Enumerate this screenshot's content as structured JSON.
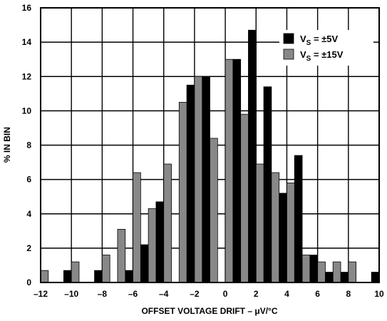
{
  "chart_data": {
    "type": "bar",
    "title": "",
    "xlabel": "OFFSET VOLTAGE DRIFT – μV/°C",
    "ylabel": "% IN BIN",
    "xlim": [
      -12,
      10
    ],
    "ylim": [
      0,
      16
    ],
    "xticks": [
      -12,
      -10,
      -8,
      -6,
      -4,
      -2,
      0,
      2,
      4,
      6,
      8,
      10
    ],
    "yticks": [
      0,
      2,
      4,
      6,
      8,
      10,
      12,
      14,
      16
    ],
    "xtick_labels": [
      "–12",
      "–10",
      "–8",
      "–6",
      "–4",
      "–2",
      "0",
      "2",
      "4",
      "6",
      "8",
      "10"
    ],
    "ytick_labels": [
      "0",
      "2",
      "4",
      "6",
      "8",
      "10",
      "12",
      "14",
      "16"
    ],
    "bin_width": 1,
    "grid": true,
    "legend_position": "top-right",
    "series": [
      {
        "name": "±5V",
        "legend_main": "V",
        "legend_sub": "S",
        "legend_rest": " = ±5V",
        "color": "#000000",
        "bins": [
          -11.25,
          -10.25,
          -9.25,
          -8.25,
          -7.25,
          -6.25,
          -5.25,
          -4.25,
          -3.25,
          -2.25,
          -1.25,
          -0.25,
          0.75,
          1.75,
          2.75,
          3.75,
          4.75,
          5.75,
          6.75,
          7.75,
          8.75,
          9.75
        ],
        "values": [
          0,
          0.7,
          0,
          0.7,
          0,
          0.7,
          2.2,
          4.7,
          0,
          11.5,
          12,
          0,
          13,
          14.7,
          11.4,
          5.2,
          7.4,
          1.6,
          0.6,
          0.6,
          0,
          0.6
        ]
      },
      {
        "name": "±15V",
        "legend_main": "V",
        "legend_sub": "S",
        "legend_rest": " = ±15V",
        "color": "#888888",
        "bins": [
          -11.75,
          -10.75,
          -9.75,
          -8.75,
          -7.75,
          -6.75,
          -5.75,
          -4.75,
          -3.75,
          -2.75,
          -1.75,
          -0.75,
          0.25,
          1.25,
          2.25,
          3.25,
          4.25,
          5.25,
          6.25,
          7.25,
          8.25,
          9.25
        ],
        "values": [
          0.7,
          0,
          1.2,
          0,
          1.6,
          3.1,
          6.4,
          4.3,
          6.9,
          10.5,
          12,
          8.4,
          13,
          9.8,
          6.9,
          6.4,
          5.8,
          1.6,
          1.2,
          1.2,
          1.2,
          0
        ]
      }
    ]
  }
}
